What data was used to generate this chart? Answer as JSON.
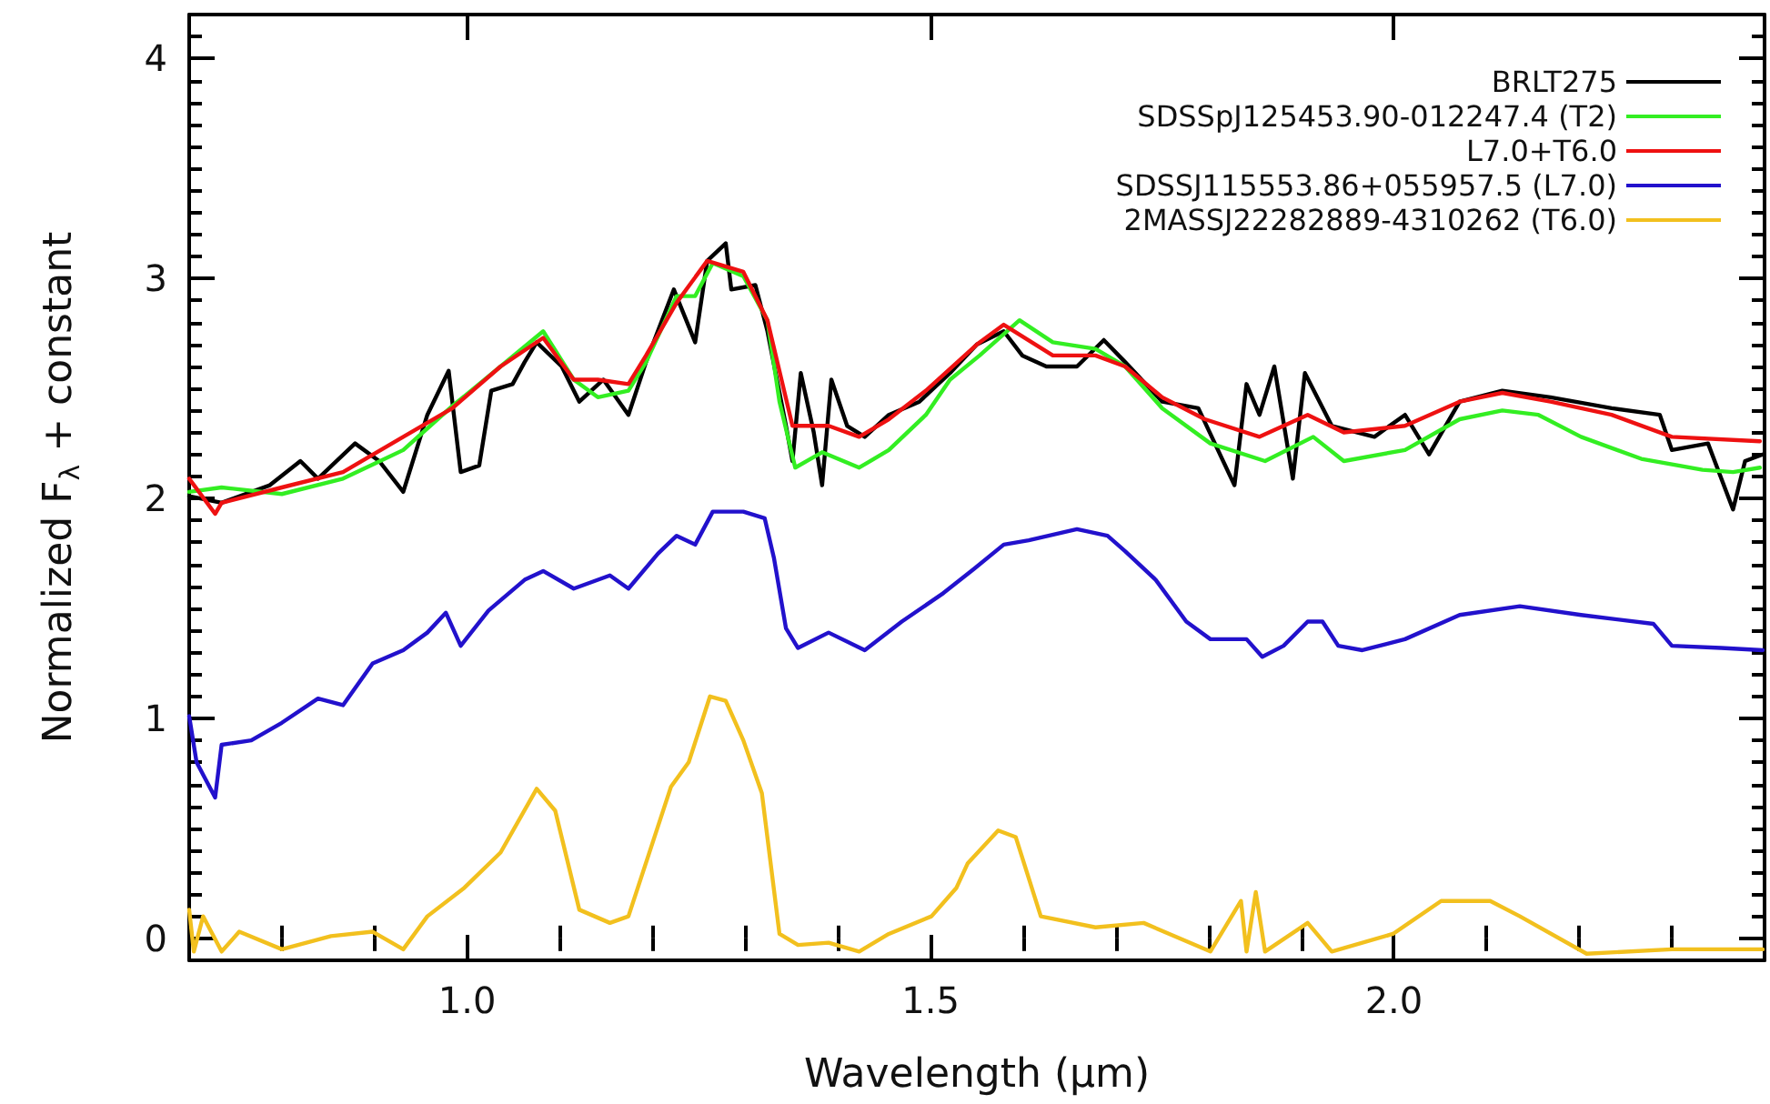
{
  "chart_data": {
    "type": "line",
    "xlabel": "Wavelength (μm)",
    "ylabel": "Normalized F$_{λ}$ + constant",
    "xlim": [
      0.7,
      2.4
    ],
    "ylim": [
      -0.1,
      4.2
    ],
    "xticks": [
      {
        "value": 0.8,
        "label": null
      },
      {
        "value": 0.9,
        "label": null
      },
      {
        "value": 1.0,
        "label": "1.0"
      },
      {
        "value": 1.1,
        "label": null
      },
      {
        "value": 1.2,
        "label": null
      },
      {
        "value": 1.3,
        "label": null
      },
      {
        "value": 1.4,
        "label": null
      },
      {
        "value": 1.5,
        "label": "1.5"
      },
      {
        "value": 1.6,
        "label": null
      },
      {
        "value": 1.7,
        "label": null
      },
      {
        "value": 1.8,
        "label": null
      },
      {
        "value": 1.9,
        "label": null
      },
      {
        "value": 2.0,
        "label": "2.0"
      },
      {
        "value": 2.1,
        "label": null
      },
      {
        "value": 2.2,
        "label": null
      },
      {
        "value": 2.3,
        "label": null
      }
    ],
    "yticks": [
      0,
      1,
      2,
      3,
      4,
      {
        "value": 0.1,
        "label": null
      },
      {
        "value": 0.2,
        "label": null
      },
      {
        "value": 0.3,
        "label": null
      },
      {
        "value": 0.4,
        "label": null
      },
      {
        "value": 0.5,
        "label": null
      },
      {
        "value": 0.6,
        "label": null
      },
      {
        "value": 0.7,
        "label": null
      },
      {
        "value": 0.8,
        "label": null
      },
      {
        "value": 0.9,
        "label": null
      },
      {
        "value": 1.1,
        "label": null
      },
      {
        "value": 1.2,
        "label": null
      },
      {
        "value": 1.3,
        "label": null
      },
      {
        "value": 1.4,
        "label": null
      },
      {
        "value": 1.5,
        "label": null
      },
      {
        "value": 1.6,
        "label": null
      },
      {
        "value": 1.7,
        "label": null
      },
      {
        "value": 1.8,
        "label": null
      },
      {
        "value": 1.9,
        "label": null
      },
      {
        "value": 2.1,
        "label": null
      },
      {
        "value": 2.2,
        "label": null
      },
      {
        "value": 2.3,
        "label": null
      },
      {
        "value": 2.4,
        "label": null
      },
      {
        "value": 2.5,
        "label": null
      },
      {
        "value": 2.6,
        "label": null
      },
      {
        "value": 2.7,
        "label": null
      },
      {
        "value": 2.8,
        "label": null
      },
      {
        "value": 2.9,
        "label": null
      },
      {
        "value": 3.1,
        "label": null
      },
      {
        "value": 3.2,
        "label": null
      },
      {
        "value": 3.3,
        "label": null
      },
      {
        "value": 3.4,
        "label": null
      },
      {
        "value": 3.5,
        "label": null
      },
      {
        "value": 3.6,
        "label": null
      },
      {
        "value": 3.7,
        "label": null
      },
      {
        "value": 3.8,
        "label": null
      },
      {
        "value": 3.9,
        "label": null
      },
      {
        "value": 4.1,
        "label": null
      }
    ],
    "grid": false,
    "legend": "top right",
    "marker": "none",
    "line_style": "solid",
    "series": [
      {
        "name": "BRLT275",
        "color": "#000000",
        "x": [
          0.7,
          0.735,
          0.787,
          0.82,
          0.839,
          0.879,
          0.905,
          0.931,
          0.957,
          0.98,
          0.993,
          1.013,
          1.026,
          1.049,
          1.062,
          1.075,
          1.102,
          1.121,
          1.147,
          1.174,
          1.193,
          1.223,
          1.246,
          1.259,
          1.279,
          1.285,
          1.311,
          1.324,
          1.344,
          1.351,
          1.36,
          1.374,
          1.383,
          1.393,
          1.41,
          1.429,
          1.455,
          1.488,
          1.521,
          1.55,
          1.579,
          1.599,
          1.625,
          1.658,
          1.687,
          1.71,
          1.75,
          1.789,
          1.828,
          1.841,
          1.855,
          1.871,
          1.891,
          1.904,
          1.933,
          1.979,
          2.012,
          2.038,
          2.071,
          2.117,
          2.169,
          2.235,
          2.287,
          2.3,
          2.339,
          2.366,
          2.379,
          2.398
        ],
        "values": [
          2.01,
          1.98,
          2.06,
          2.17,
          2.09,
          2.25,
          2.17,
          2.03,
          2.38,
          2.58,
          2.12,
          2.15,
          2.49,
          2.52,
          2.62,
          2.71,
          2.6,
          2.44,
          2.54,
          2.38,
          2.62,
          2.95,
          2.71,
          3.08,
          3.16,
          2.95,
          2.97,
          2.76,
          2.33,
          2.17,
          2.57,
          2.3,
          2.06,
          2.54,
          2.33,
          2.28,
          2.38,
          2.44,
          2.57,
          2.7,
          2.76,
          2.65,
          2.6,
          2.6,
          2.72,
          2.62,
          2.44,
          2.41,
          2.06,
          2.52,
          2.38,
          2.6,
          2.09,
          2.57,
          2.33,
          2.28,
          2.38,
          2.2,
          2.44,
          2.49,
          2.46,
          2.41,
          2.38,
          2.22,
          2.25,
          1.95,
          2.17,
          2.2
        ]
      },
      {
        "name": "SDSSpJ125453.90-012247.4 (T2)",
        "color": "#33ee22",
        "x": [
          0.7,
          0.735,
          0.8,
          0.866,
          0.931,
          0.984,
          1.036,
          1.082,
          1.115,
          1.141,
          1.174,
          1.193,
          1.226,
          1.246,
          1.265,
          1.298,
          1.324,
          1.337,
          1.354,
          1.383,
          1.423,
          1.455,
          1.495,
          1.521,
          1.553,
          1.596,
          1.632,
          1.678,
          1.71,
          1.75,
          1.802,
          1.861,
          1.913,
          1.946,
          2.012,
          2.071,
          2.117,
          2.156,
          2.202,
          2.267,
          2.333,
          2.366,
          2.395
        ],
        "values": [
          2.03,
          2.05,
          2.02,
          2.09,
          2.22,
          2.42,
          2.6,
          2.76,
          2.54,
          2.46,
          2.49,
          2.62,
          2.92,
          2.92,
          3.07,
          3.01,
          2.81,
          2.44,
          2.14,
          2.21,
          2.14,
          2.22,
          2.38,
          2.54,
          2.65,
          2.81,
          2.71,
          2.68,
          2.6,
          2.41,
          2.25,
          2.17,
          2.28,
          2.17,
          2.22,
          2.36,
          2.4,
          2.38,
          2.28,
          2.18,
          2.13,
          2.12,
          2.14
        ]
      },
      {
        "name": "L7.0+T6.0",
        "color": "#ee1111",
        "x": [
          0.7,
          0.728,
          0.735,
          0.8,
          0.866,
          0.931,
          0.984,
          1.036,
          1.082,
          1.115,
          1.141,
          1.174,
          1.193,
          1.226,
          1.259,
          1.298,
          1.324,
          1.351,
          1.39,
          1.423,
          1.455,
          1.495,
          1.55,
          1.579,
          1.632,
          1.678,
          1.71,
          1.75,
          1.796,
          1.855,
          1.907,
          1.946,
          2.012,
          2.071,
          2.117,
          2.169,
          2.235,
          2.3,
          2.395
        ],
        "values": [
          2.09,
          1.93,
          1.98,
          2.05,
          2.12,
          2.28,
          2.41,
          2.6,
          2.73,
          2.54,
          2.54,
          2.52,
          2.65,
          2.89,
          3.08,
          3.03,
          2.81,
          2.33,
          2.33,
          2.28,
          2.36,
          2.49,
          2.7,
          2.79,
          2.65,
          2.65,
          2.6,
          2.46,
          2.36,
          2.28,
          2.38,
          2.3,
          2.33,
          2.44,
          2.48,
          2.44,
          2.38,
          2.28,
          2.26
        ]
      },
      {
        "name": "SDSSJ115553.86+055957.5 (L7.0)",
        "color": "#2211cc",
        "x": [
          0.7,
          0.708,
          0.728,
          0.735,
          0.767,
          0.8,
          0.839,
          0.866,
          0.898,
          0.931,
          0.957,
          0.977,
          0.993,
          1.023,
          1.062,
          1.082,
          1.115,
          1.154,
          1.174,
          1.206,
          1.226,
          1.246,
          1.265,
          1.298,
          1.321,
          1.331,
          1.344,
          1.357,
          1.39,
          1.429,
          1.469,
          1.514,
          1.547,
          1.579,
          1.606,
          1.658,
          1.691,
          1.71,
          1.743,
          1.776,
          1.802,
          1.841,
          1.858,
          1.881,
          1.907,
          1.923,
          1.94,
          1.966,
          2.012,
          2.071,
          2.136,
          2.202,
          2.28,
          2.3,
          2.353,
          2.398
        ],
        "values": [
          1.01,
          0.8,
          0.64,
          0.88,
          0.9,
          0.98,
          1.09,
          1.06,
          1.25,
          1.31,
          1.39,
          1.48,
          1.33,
          1.49,
          1.63,
          1.67,
          1.59,
          1.65,
          1.59,
          1.75,
          1.83,
          1.79,
          1.94,
          1.94,
          1.91,
          1.73,
          1.41,
          1.32,
          1.39,
          1.31,
          1.44,
          1.57,
          1.68,
          1.79,
          1.81,
          1.86,
          1.83,
          1.76,
          1.63,
          1.44,
          1.36,
          1.36,
          1.28,
          1.33,
          1.44,
          1.44,
          1.33,
          1.31,
          1.36,
          1.47,
          1.51,
          1.47,
          1.43,
          1.33,
          1.32,
          1.31
        ]
      },
      {
        "name": "2MASSJ22282889-4310262 (T6.0)",
        "color": "#f2c01e",
        "x": [
          0.7,
          0.705,
          0.715,
          0.735,
          0.754,
          0.8,
          0.853,
          0.898,
          0.931,
          0.957,
          0.997,
          1.036,
          1.075,
          1.095,
          1.121,
          1.154,
          1.174,
          1.22,
          1.239,
          1.262,
          1.279,
          1.298,
          1.318,
          1.337,
          1.357,
          1.39,
          1.423,
          1.455,
          1.501,
          1.528,
          1.54,
          1.573,
          1.592,
          1.619,
          1.678,
          1.73,
          1.802,
          1.835,
          1.841,
          1.851,
          1.861,
          1.907,
          1.933,
          1.999,
          2.051,
          2.104,
          2.136,
          2.208,
          2.3,
          2.398
        ],
        "values": [
          0.13,
          -0.06,
          0.1,
          -0.06,
          0.03,
          -0.05,
          0.01,
          0.03,
          -0.05,
          0.1,
          0.23,
          0.39,
          0.68,
          0.58,
          0.13,
          0.07,
          0.1,
          0.69,
          0.8,
          1.1,
          1.08,
          0.9,
          0.66,
          0.02,
          -0.03,
          -0.02,
          -0.06,
          0.02,
          0.1,
          0.23,
          0.34,
          0.49,
          0.46,
          0.1,
          0.05,
          0.07,
          -0.06,
          0.17,
          -0.06,
          0.21,
          -0.06,
          0.07,
          -0.06,
          0.02,
          0.17,
          0.17,
          0.1,
          -0.07,
          -0.05,
          -0.05
        ]
      }
    ]
  }
}
